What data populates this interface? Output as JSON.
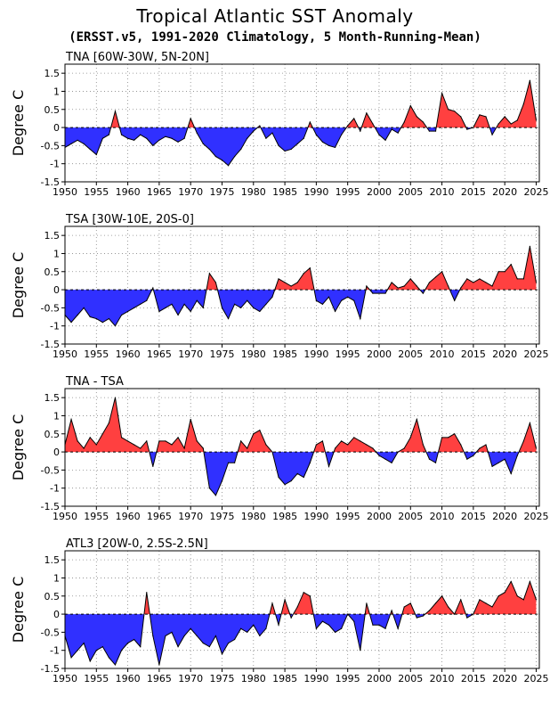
{
  "figure": {
    "title": "Tropical Atlantic SST Anomaly",
    "subtitle": "(ERSST.v5, 1991-2020 Climatology, 5 Month-Running-Mean)",
    "colors": {
      "positive": "#ff4040",
      "negative": "#3030ff",
      "line": "#000000",
      "grid": "#888888"
    }
  },
  "chart_data": [
    {
      "type": "area",
      "title": "TNA [60W-30W, 5N-20N]",
      "ylabel": "Degree C",
      "xlim": [
        1950,
        2025.5
      ],
      "ylim": [
        -1.5,
        1.75
      ],
      "x_ticks": [
        1950,
        1955,
        1960,
        1965,
        1970,
        1975,
        1980,
        1985,
        1990,
        1995,
        2000,
        2005,
        2010,
        2015,
        2020,
        2025
      ],
      "y_ticks": [
        -1.5,
        -1,
        -0.5,
        0,
        0.5,
        1,
        1.5
      ],
      "y_tick_labels": [
        "-1.5",
        "-1",
        "-0.5",
        "0",
        "0.5",
        "1",
        "1.5"
      ],
      "grid": true,
      "x": [
        1950,
        1951,
        1952,
        1953,
        1954,
        1955,
        1956,
        1957,
        1958,
        1959,
        1960,
        1961,
        1962,
        1963,
        1964,
        1965,
        1966,
        1967,
        1968,
        1969,
        1970,
        1971,
        1972,
        1973,
        1974,
        1975,
        1976,
        1977,
        1978,
        1979,
        1980,
        1981,
        1982,
        1983,
        1984,
        1985,
        1986,
        1987,
        1988,
        1989,
        1990,
        1991,
        1992,
        1993,
        1994,
        1995,
        1996,
        1997,
        1998,
        1999,
        2000,
        2001,
        2002,
        2003,
        2004,
        2005,
        2006,
        2007,
        2008,
        2009,
        2010,
        2011,
        2012,
        2013,
        2014,
        2015,
        2016,
        2017,
        2018,
        2019,
        2020,
        2021,
        2022,
        2023,
        2024,
        2025
      ],
      "values": [
        -0.55,
        -0.45,
        -0.35,
        -0.45,
        -0.6,
        -0.75,
        -0.3,
        -0.2,
        0.45,
        -0.2,
        -0.3,
        -0.35,
        -0.2,
        -0.3,
        -0.5,
        -0.35,
        -0.25,
        -0.3,
        -0.4,
        -0.3,
        0.25,
        -0.15,
        -0.45,
        -0.6,
        -0.8,
        -0.9,
        -1.05,
        -0.8,
        -0.6,
        -0.3,
        -0.1,
        0.05,
        -0.3,
        -0.15,
        -0.5,
        -0.65,
        -0.6,
        -0.45,
        -0.3,
        0.15,
        -0.2,
        -0.4,
        -0.5,
        -0.55,
        -0.2,
        0.05,
        0.25,
        -0.1,
        0.4,
        0.1,
        -0.2,
        -0.35,
        -0.05,
        -0.15,
        0.15,
        0.6,
        0.3,
        0.15,
        -0.1,
        -0.1,
        0.95,
        0.5,
        0.45,
        0.3,
        -0.05,
        0.0,
        0.35,
        0.3,
        -0.2,
        0.1,
        0.3,
        0.1,
        0.2,
        0.65,
        1.3,
        0.2
      ]
    },
    {
      "type": "area",
      "title": "TSA [30W-10E, 20S-0]",
      "ylabel": "Degree C",
      "xlim": [
        1950,
        2025.5
      ],
      "ylim": [
        -1.5,
        1.75
      ],
      "x_ticks": [
        1950,
        1955,
        1960,
        1965,
        1970,
        1975,
        1980,
        1985,
        1990,
        1995,
        2000,
        2005,
        2010,
        2015,
        2020,
        2025
      ],
      "y_ticks": [
        -1.5,
        -1,
        -0.5,
        0,
        0.5,
        1,
        1.5
      ],
      "y_tick_labels": [
        "-1.5",
        "-1",
        "-0.5",
        "0",
        "0.5",
        "1",
        "1.5"
      ],
      "grid": true,
      "x": [
        1950,
        1951,
        1952,
        1953,
        1954,
        1955,
        1956,
        1957,
        1958,
        1959,
        1960,
        1961,
        1962,
        1963,
        1964,
        1965,
        1966,
        1967,
        1968,
        1969,
        1970,
        1971,
        1972,
        1973,
        1974,
        1975,
        1976,
        1977,
        1978,
        1979,
        1980,
        1981,
        1982,
        1983,
        1984,
        1985,
        1986,
        1987,
        1988,
        1989,
        1990,
        1991,
        1992,
        1993,
        1994,
        1995,
        1996,
        1997,
        1998,
        1999,
        2000,
        2001,
        2002,
        2003,
        2004,
        2005,
        2006,
        2007,
        2008,
        2009,
        2010,
        2011,
        2012,
        2013,
        2014,
        2015,
        2016,
        2017,
        2018,
        2019,
        2020,
        2021,
        2022,
        2023,
        2024,
        2025
      ],
      "values": [
        -0.7,
        -0.9,
        -0.7,
        -0.5,
        -0.75,
        -0.8,
        -0.9,
        -0.8,
        -1.0,
        -0.7,
        -0.6,
        -0.5,
        -0.4,
        -0.3,
        0.05,
        -0.6,
        -0.5,
        -0.4,
        -0.7,
        -0.4,
        -0.6,
        -0.3,
        -0.5,
        0.45,
        0.2,
        -0.5,
        -0.8,
        -0.4,
        -0.5,
        -0.3,
        -0.5,
        -0.6,
        -0.4,
        -0.2,
        0.3,
        0.2,
        0.1,
        0.2,
        0.45,
        0.6,
        -0.3,
        -0.4,
        -0.2,
        -0.6,
        -0.3,
        -0.2,
        -0.3,
        -0.8,
        0.1,
        -0.1,
        -0.1,
        -0.1,
        0.2,
        0.05,
        0.1,
        0.3,
        0.1,
        -0.1,
        0.2,
        0.35,
        0.5,
        0.1,
        -0.3,
        0.05,
        0.3,
        0.2,
        0.3,
        0.2,
        0.1,
        0.5,
        0.5,
        0.7,
        0.3,
        0.3,
        1.2,
        0.2
      ]
    },
    {
      "type": "area",
      "title": "TNA - TSA",
      "ylabel": "Degree C",
      "xlim": [
        1950,
        2025.5
      ],
      "ylim": [
        -1.5,
        1.75
      ],
      "x_ticks": [
        1950,
        1955,
        1960,
        1965,
        1970,
        1975,
        1980,
        1985,
        1990,
        1995,
        2000,
        2005,
        2010,
        2015,
        2020,
        2025
      ],
      "y_ticks": [
        -1.5,
        -1,
        -0.5,
        0,
        0.5,
        1,
        1.5
      ],
      "y_tick_labels": [
        "-1.5",
        "-1",
        "-0.5",
        "0",
        "0.5",
        "1",
        "1.5"
      ],
      "grid": true,
      "x": [
        1950,
        1951,
        1952,
        1953,
        1954,
        1955,
        1956,
        1957,
        1958,
        1959,
        1960,
        1961,
        1962,
        1963,
        1964,
        1965,
        1966,
        1967,
        1968,
        1969,
        1970,
        1971,
        1972,
        1973,
        1974,
        1975,
        1976,
        1977,
        1978,
        1979,
        1980,
        1981,
        1982,
        1983,
        1984,
        1985,
        1986,
        1987,
        1988,
        1989,
        1990,
        1991,
        1992,
        1993,
        1994,
        1995,
        1996,
        1997,
        1998,
        1999,
        2000,
        2001,
        2002,
        2003,
        2004,
        2005,
        2006,
        2007,
        2008,
        2009,
        2010,
        2011,
        2012,
        2013,
        2014,
        2015,
        2016,
        2017,
        2018,
        2019,
        2020,
        2021,
        2022,
        2023,
        2024,
        2025
      ],
      "values": [
        0.2,
        0.9,
        0.3,
        0.1,
        0.4,
        0.2,
        0.5,
        0.8,
        1.5,
        0.4,
        0.3,
        0.2,
        0.1,
        0.3,
        -0.4,
        0.3,
        0.3,
        0.2,
        0.4,
        0.1,
        0.9,
        0.3,
        0.1,
        -1.0,
        -1.2,
        -0.8,
        -0.3,
        -0.3,
        0.3,
        0.1,
        0.5,
        0.6,
        0.2,
        0.0,
        -0.7,
        -0.9,
        -0.8,
        -0.6,
        -0.7,
        -0.3,
        0.2,
        0.3,
        -0.4,
        0.1,
        0.3,
        0.2,
        0.4,
        0.3,
        0.2,
        0.1,
        -0.1,
        -0.2,
        -0.3,
        0.0,
        0.1,
        0.4,
        0.9,
        0.2,
        -0.2,
        -0.3,
        0.4,
        0.4,
        0.5,
        0.2,
        -0.2,
        -0.1,
        0.1,
        0.2,
        -0.4,
        -0.3,
        -0.2,
        -0.6,
        -0.1,
        0.3,
        0.8,
        0.1
      ]
    },
    {
      "type": "area",
      "title": "ATL3 [20W-0, 2.5S-2.5N]",
      "ylabel": "Degree C",
      "xlim": [
        1950,
        2025.5
      ],
      "ylim": [
        -1.5,
        1.75
      ],
      "x_ticks": [
        1950,
        1955,
        1960,
        1965,
        1970,
        1975,
        1980,
        1985,
        1990,
        1995,
        2000,
        2005,
        2010,
        2015,
        2020,
        2025
      ],
      "y_ticks": [
        -1.5,
        -1,
        -0.5,
        0,
        0.5,
        1,
        1.5
      ],
      "y_tick_labels": [
        "-1.5",
        "-1",
        "-0.5",
        "0",
        "0.5",
        "1",
        "1.5"
      ],
      "grid": true,
      "x": [
        1950,
        1951,
        1952,
        1953,
        1954,
        1955,
        1956,
        1957,
        1958,
        1959,
        1960,
        1961,
        1962,
        1963,
        1964,
        1965,
        1966,
        1967,
        1968,
        1969,
        1970,
        1971,
        1972,
        1973,
        1974,
        1975,
        1976,
        1977,
        1978,
        1979,
        1980,
        1981,
        1982,
        1983,
        1984,
        1985,
        1986,
        1987,
        1988,
        1989,
        1990,
        1991,
        1992,
        1993,
        1994,
        1995,
        1996,
        1997,
        1998,
        1999,
        2000,
        2001,
        2002,
        2003,
        2004,
        2005,
        2006,
        2007,
        2008,
        2009,
        2010,
        2011,
        2012,
        2013,
        2014,
        2015,
        2016,
        2017,
        2018,
        2019,
        2020,
        2021,
        2022,
        2023,
        2024,
        2025
      ],
      "values": [
        -0.6,
        -1.2,
        -1.0,
        -0.8,
        -1.3,
        -1.0,
        -0.9,
        -1.2,
        -1.4,
        -1.0,
        -0.8,
        -0.7,
        -0.9,
        0.6,
        -0.6,
        -1.4,
        -0.6,
        -0.5,
        -0.9,
        -0.6,
        -0.4,
        -0.6,
        -0.8,
        -0.9,
        -0.6,
        -1.1,
        -0.8,
        -0.7,
        -0.4,
        -0.5,
        -0.3,
        -0.6,
        -0.4,
        0.3,
        -0.3,
        0.4,
        -0.1,
        0.2,
        0.6,
        0.5,
        -0.4,
        -0.2,
        -0.3,
        -0.5,
        -0.4,
        0.0,
        -0.2,
        -1.0,
        0.3,
        -0.3,
        -0.3,
        -0.4,
        0.1,
        -0.4,
        0.2,
        0.3,
        -0.1,
        -0.05,
        0.1,
        0.3,
        0.5,
        0.2,
        0.0,
        0.4,
        -0.1,
        0.0,
        0.4,
        0.3,
        0.2,
        0.5,
        0.6,
        0.9,
        0.5,
        0.4,
        0.9,
        0.4
      ]
    }
  ]
}
